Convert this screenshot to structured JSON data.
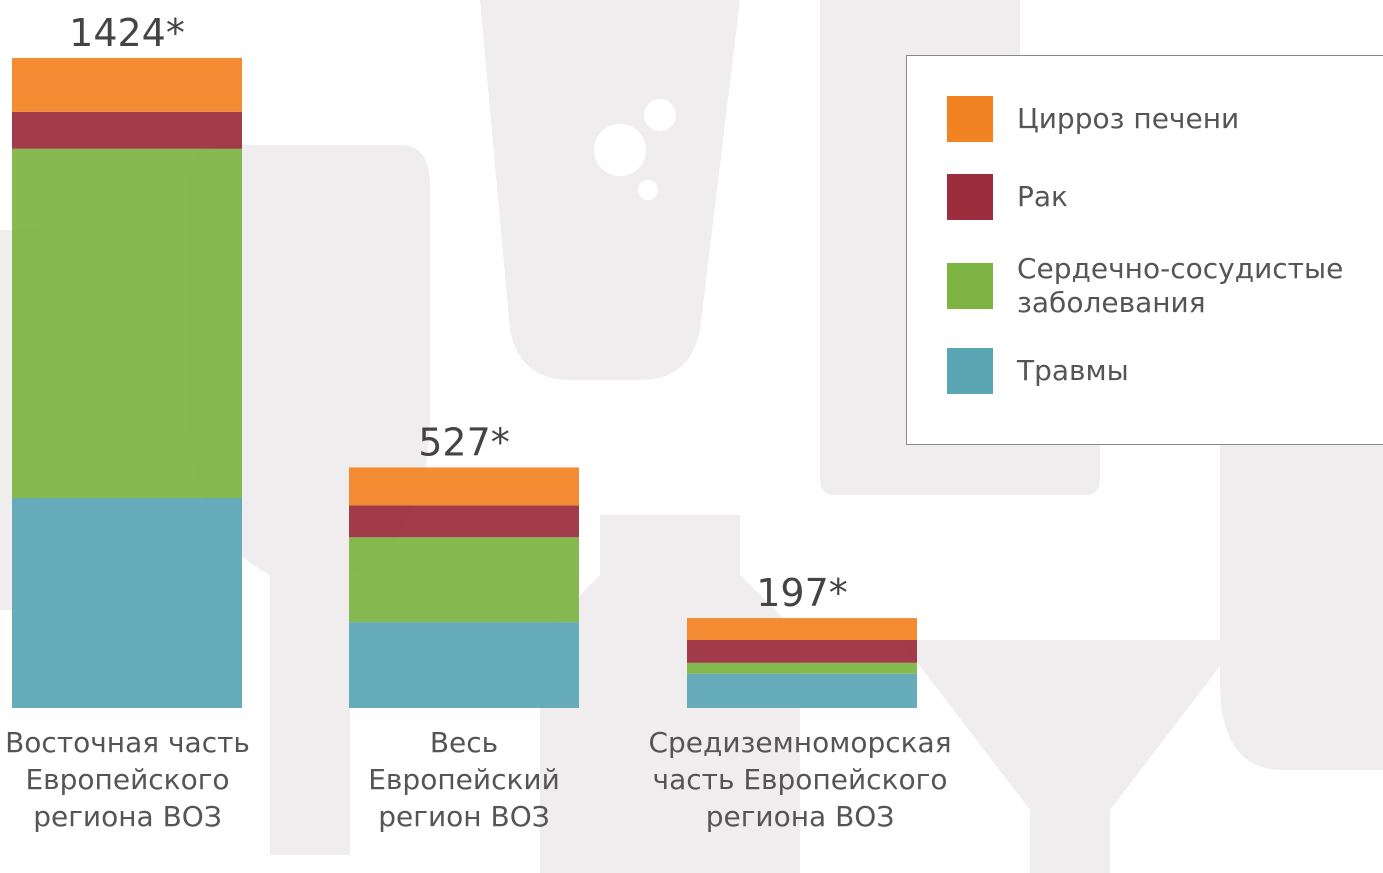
{
  "chart_data": {
    "type": "stacked_bar",
    "categories": [
      "Восточная часть Европейского региона ВОЗ",
      "Весь Европейский регион ВОЗ",
      "Средиземноморская часть Европейского региона ВОЗ"
    ],
    "series": [
      {
        "name": "Цирроз печени",
        "color": "#f28322",
        "values": [
          118,
          83,
          48
        ]
      },
      {
        "name": "Рак",
        "color": "#9b2d3c",
        "values": [
          81,
          70,
          50
        ]
      },
      {
        "name": "Сердечно-сосудистые заболевания",
        "color": "#7db443",
        "values": [
          765,
          186,
          24
        ]
      },
      {
        "name": "Травмы",
        "color": "#5ba6b5",
        "values": [
          460,
          188,
          75
        ]
      }
    ],
    "totals": [
      1424,
      527,
      197
    ],
    "total_labels": [
      "1424*",
      "527*",
      "197*"
    ]
  }
}
